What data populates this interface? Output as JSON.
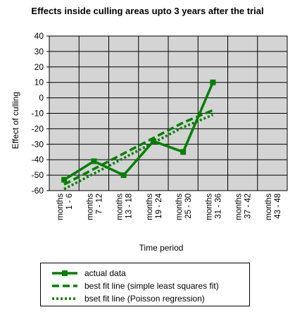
{
  "chart_data": {
    "type": "line",
    "title": "Effects inside culling areas upto 3 years after the trial",
    "xlabel": "Time period",
    "ylabel": "Effect of culling",
    "categories": [
      [
        "months",
        "1 - 6"
      ],
      [
        "months",
        "7 - 12"
      ],
      [
        "months",
        "13 - 18"
      ],
      [
        "months",
        "19 - 24"
      ],
      [
        "months",
        "25 - 30"
      ],
      [
        "months",
        "31 - 36"
      ],
      [
        "months",
        "37 - 42"
      ],
      [
        "months",
        "43 - 48"
      ]
    ],
    "ylim": [
      -60,
      40
    ],
    "yticks": [
      40,
      30,
      20,
      10,
      0,
      -10,
      -20,
      -30,
      -40,
      -50,
      -60
    ],
    "grid": true,
    "legend_position": "bottom",
    "colors": {
      "series": "#008000",
      "plot_background": "#d4d4d4",
      "grid": "#000000"
    },
    "series": [
      {
        "name": "actual data",
        "style": "solid-square-markers",
        "values": [
          -53,
          -41,
          -50,
          -28,
          -35,
          10,
          null,
          null
        ]
      },
      {
        "name": "best fit line (simple least squares fit)",
        "style": "dashed",
        "values": [
          -56,
          -46,
          -36,
          -26,
          -16,
          -8,
          null,
          null
        ]
      },
      {
        "name": "bset fit line (Poisson regression)",
        "style": "dotted",
        "values": [
          -59,
          -49,
          -39,
          -29,
          -19,
          -11,
          null,
          null
        ]
      }
    ]
  }
}
